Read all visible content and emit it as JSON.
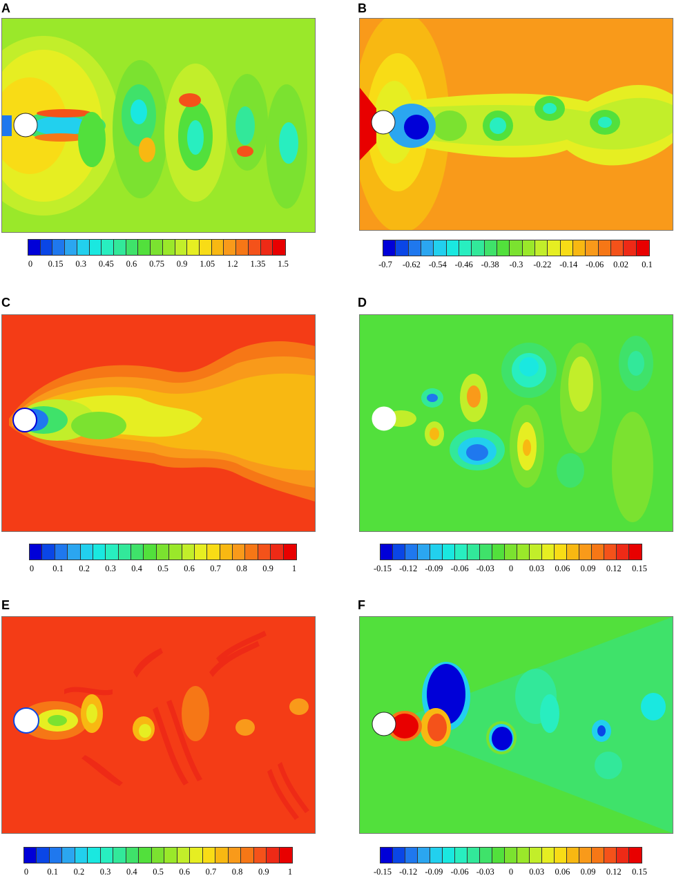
{
  "chart_data": [
    {
      "type": "heatmap",
      "panel_label": "A",
      "colorbar_ticks": [
        "0",
        "0.15",
        "0.3",
        "0.45",
        "0.6",
        "0.75",
        "0.9",
        "1.05",
        "1.2",
        "1.35",
        "1.5"
      ],
      "range": [
        0,
        1.5
      ],
      "background_color": "#9ae82a"
    },
    {
      "type": "heatmap",
      "panel_label": "B",
      "colorbar_ticks": [
        "-0.7",
        "-0.62",
        "-0.54",
        "-0.46",
        "-0.38",
        "-0.3",
        "-0.22",
        "-0.14",
        "-0.06",
        "0.02",
        "0.1"
      ],
      "range": [
        -0.7,
        0.1
      ],
      "background_color": "#f99a1a"
    },
    {
      "type": "heatmap",
      "panel_label": "C",
      "colorbar_ticks": [
        "0",
        "0.1",
        "0.2",
        "0.3",
        "0.4",
        "0.5",
        "0.6",
        "0.7",
        "0.8",
        "0.9",
        "1"
      ],
      "range": [
        0,
        1
      ],
      "background_color": "#f43c16"
    },
    {
      "type": "heatmap",
      "panel_label": "D",
      "colorbar_ticks": [
        "-0.15",
        "-0.12",
        "-0.09",
        "-0.06",
        "-0.03",
        "0",
        "0.03",
        "0.06",
        "0.09",
        "0.12",
        "0.15"
      ],
      "range": [
        -0.15,
        0.15
      ],
      "background_color": "#52e03c"
    },
    {
      "type": "heatmap",
      "panel_label": "E",
      "colorbar_ticks": [
        "0",
        "0.1",
        "0.2",
        "0.3",
        "0.4",
        "0.5",
        "0.6",
        "0.7",
        "0.8",
        "0.9",
        "1"
      ],
      "range": [
        0,
        1
      ],
      "background_color": "#f43c16"
    },
    {
      "type": "heatmap",
      "panel_label": "F",
      "colorbar_ticks": [
        "-0.15",
        "-0.12",
        "-0.09",
        "-0.06",
        "-0.03",
        "0",
        "0.03",
        "0.06",
        "0.09",
        "0.12",
        "0.15"
      ],
      "range": [
        -0.15,
        0.15
      ],
      "background_color": "#52e03c"
    }
  ],
  "colormap": [
    "#0000d8",
    "#0a46e6",
    "#1f78ee",
    "#2ba6f0",
    "#22d0ee",
    "#1ae8e0",
    "#28eec0",
    "#32e89a",
    "#3fe26a",
    "#52e03c",
    "#7be230",
    "#9ae82a",
    "#c2ee2a",
    "#e6ee22",
    "#f8dc16",
    "#f8b812",
    "#f99a1a",
    "#f67716",
    "#f4521a",
    "#ee2a16",
    "#e80000"
  ]
}
